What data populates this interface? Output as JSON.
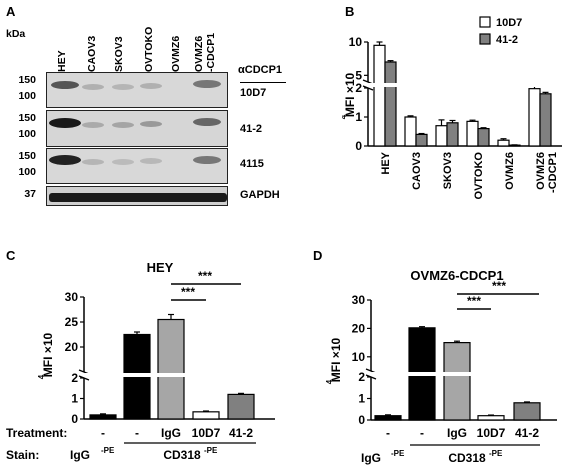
{
  "panels": {
    "a": {
      "letter": "A",
      "kda": "kDa",
      "lanes": [
        "HEY",
        "CAOV3",
        "SKOV3",
        "OVTOKO",
        "OVMZ6",
        "OVMZ6\n-CDCP1"
      ],
      "antibody_header": "αCDCP1",
      "blots": [
        {
          "label": "10D7",
          "mw": [
            "150",
            "100"
          ]
        },
        {
          "label": "41-2",
          "mw": [
            "150",
            "100"
          ]
        },
        {
          "label": "4115",
          "mw": [
            "150",
            "100"
          ]
        },
        {
          "label": "GAPDH",
          "mw": [
            "37"
          ]
        }
      ]
    },
    "b": {
      "letter": "B"
    },
    "c": {
      "letter": "C"
    },
    "d": {
      "letter": "D"
    }
  },
  "chart_data": [
    {
      "type": "bar",
      "panel": "B",
      "ylabel": "MFI ×10⁴",
      "categories": [
        "HEY",
        "CAOV3",
        "SKOV3",
        "OVTOKO",
        "OVMZ6",
        "OVMZ6\n-CDCP1"
      ],
      "series": [
        {
          "name": "10D7",
          "color": "#ffffff",
          "values": [
            9.5,
            1.0,
            0.7,
            0.85,
            0.2,
            3.0
          ],
          "errors": [
            0.5,
            0.04,
            0.2,
            0.04,
            0.05,
            0.4
          ]
        },
        {
          "name": "41-2",
          "color": "#808080",
          "values": [
            7.0,
            0.4,
            0.8,
            0.6,
            0.03,
            1.8
          ],
          "errors": [
            0.2,
            0.03,
            0.08,
            0.03,
            0.01,
            0.05
          ]
        }
      ],
      "yticks_low": [
        "0",
        "1",
        "2"
      ],
      "yticks_high": [
        "5",
        "10"
      ],
      "axis_break": true,
      "legend": "top-right"
    },
    {
      "type": "bar",
      "panel": "C",
      "title": "HEY",
      "ylabel": "MFI ×10⁴",
      "categories": [
        "-",
        "-",
        "IgG",
        "10D7",
        "41-2"
      ],
      "values": [
        0.2,
        22.5,
        25.5,
        0.35,
        1.2
      ],
      "errors": [
        0.05,
        0.5,
        1.0,
        0.04,
        0.05
      ],
      "colors": [
        "#000000",
        "#000000",
        "#a6a6a6",
        "#ffffff",
        "#808080"
      ],
      "yticks_low": [
        "0",
        "1",
        "2"
      ],
      "yticks_high": [
        "20",
        "25",
        "30"
      ],
      "axis_break": true,
      "treatment_label": "Treatment:",
      "stain_label": "Stain:",
      "stain_groups": [
        {
          "text": "IgG",
          "sup": "-PE"
        },
        {
          "text": "CD318",
          "sup": "-PE"
        }
      ],
      "significance": [
        {
          "label": "***",
          "from": "IgG",
          "to": "10D7"
        },
        {
          "label": "***",
          "from": "IgG",
          "to": "41-2"
        }
      ]
    },
    {
      "type": "bar",
      "panel": "D",
      "title": "OVMZ6-CDCP1",
      "ylabel": "MFI ×10⁴",
      "categories": [
        "-",
        "-",
        "IgG",
        "10D7",
        "41-2"
      ],
      "values": [
        0.2,
        20.2,
        15.0,
        0.2,
        0.8
      ],
      "errors": [
        0.04,
        0.4,
        0.5,
        0.03,
        0.04
      ],
      "colors": [
        "#000000",
        "#000000",
        "#a6a6a6",
        "#ffffff",
        "#808080"
      ],
      "yticks_low": [
        "0",
        "1",
        "2"
      ],
      "yticks_high": [
        "10",
        "20",
        "30"
      ],
      "axis_break": true,
      "stain_groups": [
        {
          "text": "IgG",
          "sup": "-PE"
        },
        {
          "text": "CD318",
          "sup": "-PE"
        }
      ],
      "significance": [
        {
          "label": "***",
          "from": "IgG",
          "to": "10D7"
        },
        {
          "label": "***",
          "from": "IgG",
          "to": "41-2"
        }
      ]
    }
  ]
}
